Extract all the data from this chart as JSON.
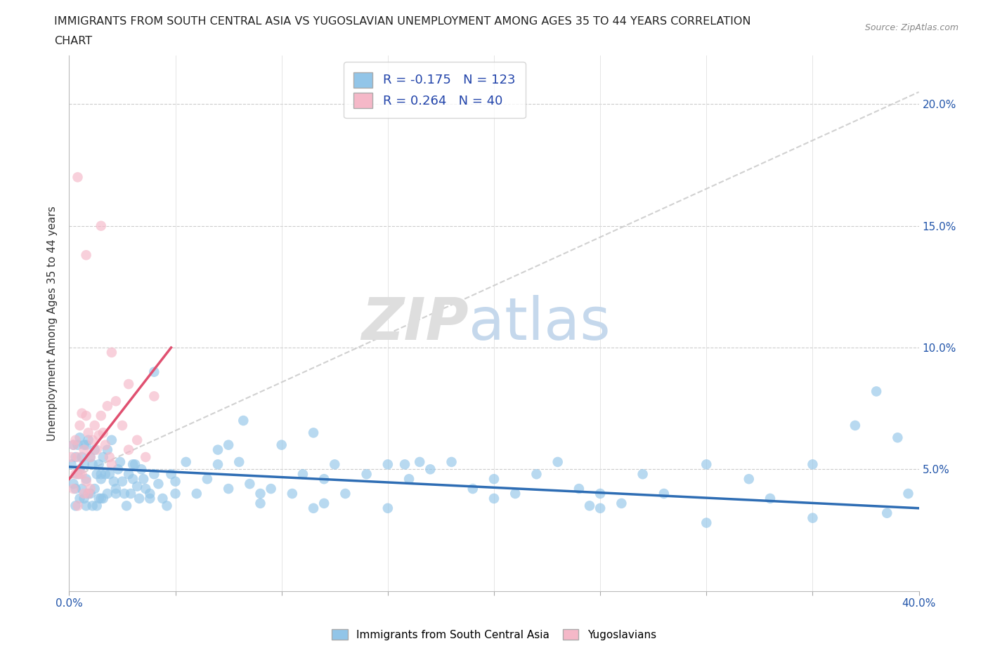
{
  "title_line1": "IMMIGRANTS FROM SOUTH CENTRAL ASIA VS YUGOSLAVIAN UNEMPLOYMENT AMONG AGES 35 TO 44 YEARS CORRELATION",
  "title_line2": "CHART",
  "source_text": "Source: ZipAtlas.com",
  "ylabel": "Unemployment Among Ages 35 to 44 years",
  "xlim": [
    0.0,
    0.4
  ],
  "ylim": [
    0.0,
    0.22
  ],
  "xtick_vals": [
    0.0,
    0.05,
    0.1,
    0.15,
    0.2,
    0.25,
    0.3,
    0.35,
    0.4
  ],
  "xtick_labels": [
    "0.0%",
    "",
    "",
    "",
    "",
    "",
    "",
    "",
    "40.0%"
  ],
  "ytick_vals": [
    0.0,
    0.05,
    0.1,
    0.15,
    0.2
  ],
  "ytick_labels": [
    "",
    "5.0%",
    "10.0%",
    "15.0%",
    "20.0%"
  ],
  "blue_color": "#92C5E8",
  "pink_color": "#F5B8C8",
  "trend_blue_color": "#2E6DB4",
  "trend_pink_color": "#E05070",
  "dashed_color": "#CCCCCC",
  "legend_R_blue": "-0.175",
  "legend_N_blue": "123",
  "legend_R_pink": "0.264",
  "legend_N_pink": "40",
  "blue_trend_x": [
    0.0,
    0.4
  ],
  "blue_trend_y": [
    0.051,
    0.034
  ],
  "pink_trend_x": [
    0.0,
    0.048
  ],
  "pink_trend_y": [
    0.046,
    0.1
  ],
  "dashed_trend_x": [
    0.0,
    0.4
  ],
  "dashed_trend_y": [
    0.046,
    0.205
  ],
  "blue_scatter_x": [
    0.001,
    0.002,
    0.002,
    0.003,
    0.003,
    0.003,
    0.004,
    0.004,
    0.005,
    0.005,
    0.005,
    0.006,
    0.006,
    0.007,
    0.007,
    0.008,
    0.008,
    0.008,
    0.009,
    0.009,
    0.01,
    0.01,
    0.011,
    0.011,
    0.012,
    0.012,
    0.013,
    0.013,
    0.014,
    0.014,
    0.015,
    0.015,
    0.016,
    0.016,
    0.017,
    0.018,
    0.018,
    0.019,
    0.02,
    0.021,
    0.022,
    0.023,
    0.024,
    0.025,
    0.026,
    0.027,
    0.028,
    0.029,
    0.03,
    0.031,
    0.032,
    0.033,
    0.034,
    0.035,
    0.036,
    0.038,
    0.04,
    0.042,
    0.044,
    0.046,
    0.048,
    0.05,
    0.055,
    0.06,
    0.065,
    0.07,
    0.075,
    0.08,
    0.085,
    0.09,
    0.095,
    0.1,
    0.105,
    0.11,
    0.115,
    0.12,
    0.125,
    0.13,
    0.14,
    0.15,
    0.16,
    0.17,
    0.18,
    0.19,
    0.2,
    0.21,
    0.22,
    0.23,
    0.24,
    0.25,
    0.26,
    0.27,
    0.28,
    0.3,
    0.32,
    0.33,
    0.35,
    0.37,
    0.38,
    0.39,
    0.007,
    0.015,
    0.022,
    0.03,
    0.05,
    0.07,
    0.09,
    0.12,
    0.15,
    0.2,
    0.25,
    0.3,
    0.038,
    0.082,
    0.35,
    0.385,
    0.395,
    0.158,
    0.245,
    0.165,
    0.04,
    0.075,
    0.115
  ],
  "blue_scatter_y": [
    0.052,
    0.06,
    0.044,
    0.055,
    0.042,
    0.035,
    0.048,
    0.06,
    0.05,
    0.063,
    0.038,
    0.055,
    0.042,
    0.052,
    0.038,
    0.06,
    0.046,
    0.035,
    0.062,
    0.04,
    0.055,
    0.04,
    0.052,
    0.035,
    0.058,
    0.042,
    0.048,
    0.035,
    0.052,
    0.038,
    0.048,
    0.038,
    0.055,
    0.038,
    0.048,
    0.058,
    0.04,
    0.048,
    0.062,
    0.045,
    0.042,
    0.05,
    0.053,
    0.045,
    0.04,
    0.035,
    0.048,
    0.04,
    0.046,
    0.052,
    0.043,
    0.038,
    0.05,
    0.046,
    0.042,
    0.04,
    0.048,
    0.044,
    0.038,
    0.035,
    0.048,
    0.045,
    0.053,
    0.04,
    0.046,
    0.052,
    0.042,
    0.053,
    0.044,
    0.036,
    0.042,
    0.06,
    0.04,
    0.048,
    0.034,
    0.046,
    0.052,
    0.04,
    0.048,
    0.052,
    0.046,
    0.05,
    0.053,
    0.042,
    0.046,
    0.04,
    0.048,
    0.053,
    0.042,
    0.04,
    0.036,
    0.048,
    0.04,
    0.052,
    0.046,
    0.038,
    0.052,
    0.068,
    0.082,
    0.063,
    0.06,
    0.046,
    0.04,
    0.052,
    0.04,
    0.058,
    0.04,
    0.036,
    0.034,
    0.038,
    0.034,
    0.028,
    0.038,
    0.07,
    0.03,
    0.032,
    0.04,
    0.052,
    0.035,
    0.053,
    0.09,
    0.06,
    0.065
  ],
  "pink_scatter_x": [
    0.001,
    0.002,
    0.002,
    0.003,
    0.003,
    0.004,
    0.004,
    0.005,
    0.005,
    0.006,
    0.006,
    0.007,
    0.007,
    0.008,
    0.008,
    0.009,
    0.009,
    0.01,
    0.01,
    0.011,
    0.012,
    0.013,
    0.014,
    0.015,
    0.016,
    0.017,
    0.018,
    0.019,
    0.02,
    0.022,
    0.025,
    0.028,
    0.032,
    0.036,
    0.04,
    0.004,
    0.008,
    0.015,
    0.02,
    0.028
  ],
  "pink_scatter_y": [
    0.055,
    0.06,
    0.042,
    0.062,
    0.048,
    0.055,
    0.035,
    0.068,
    0.048,
    0.073,
    0.048,
    0.058,
    0.04,
    0.072,
    0.045,
    0.065,
    0.04,
    0.055,
    0.042,
    0.062,
    0.068,
    0.058,
    0.064,
    0.072,
    0.065,
    0.06,
    0.076,
    0.055,
    0.052,
    0.078,
    0.068,
    0.058,
    0.062,
    0.055,
    0.08,
    0.17,
    0.138,
    0.15,
    0.098,
    0.085
  ]
}
